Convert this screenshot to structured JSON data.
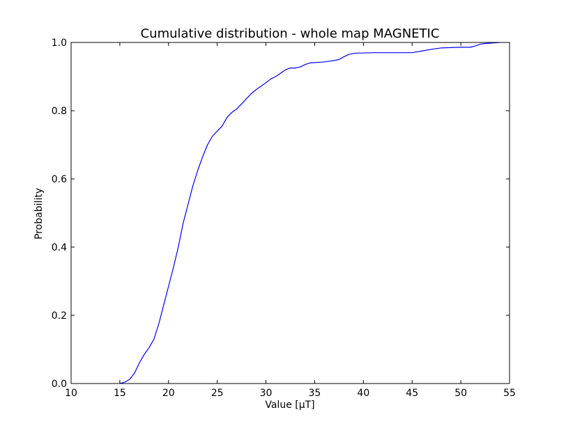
{
  "chart_data": {
    "type": "line",
    "title": "Cumulative distribution - whole map MAGNETIC",
    "xlabel": "Value [µT]",
    "ylabel": "Probability",
    "xlim": [
      10,
      55
    ],
    "ylim": [
      0.0,
      1.0
    ],
    "x_ticks": [
      "10",
      "15",
      "20",
      "25",
      "30",
      "35",
      "40",
      "45",
      "50",
      "55"
    ],
    "y_ticks": [
      "0.0",
      "0.2",
      "0.4",
      "0.6",
      "0.8",
      "1.0"
    ],
    "grid": false,
    "legend": null,
    "series": [
      {
        "color": "#0000ff",
        "x": [
          15.0,
          15.5,
          16.0,
          16.5,
          17.0,
          17.5,
          18.0,
          18.5,
          19.0,
          19.5,
          20.0,
          20.5,
          21.0,
          21.5,
          22.0,
          22.5,
          23.0,
          23.5,
          24.0,
          24.5,
          25.0,
          25.5,
          26.0,
          26.5,
          27.0,
          27.5,
          28.0,
          28.5,
          29.0,
          29.5,
          30.0,
          30.5,
          31.0,
          31.5,
          32.0,
          32.5,
          33.0,
          33.5,
          34.0,
          34.5,
          35.0,
          35.5,
          36.0,
          36.5,
          37.0,
          37.5,
          38.0,
          38.5,
          39.0,
          39.5,
          40.0,
          41.0,
          42.0,
          43.0,
          44.0,
          45.0,
          46.0,
          47.0,
          48.0,
          49.0,
          50.0,
          51.0,
          51.5,
          52.0,
          52.5,
          53.0,
          53.5,
          54.0
        ],
        "y": [
          0.0,
          0.004,
          0.012,
          0.03,
          0.06,
          0.085,
          0.105,
          0.13,
          0.175,
          0.23,
          0.285,
          0.34,
          0.4,
          0.47,
          0.525,
          0.58,
          0.625,
          0.665,
          0.7,
          0.725,
          0.74,
          0.755,
          0.78,
          0.795,
          0.805,
          0.82,
          0.835,
          0.85,
          0.862,
          0.872,
          0.882,
          0.893,
          0.9,
          0.91,
          0.92,
          0.925,
          0.925,
          0.928,
          0.935,
          0.94,
          0.941,
          0.942,
          0.943,
          0.945,
          0.947,
          0.95,
          0.958,
          0.965,
          0.968,
          0.969,
          0.969,
          0.97,
          0.97,
          0.97,
          0.97,
          0.97,
          0.975,
          0.98,
          0.984,
          0.985,
          0.986,
          0.986,
          0.99,
          0.995,
          0.997,
          0.998,
          0.999,
          1.0
        ]
      }
    ]
  }
}
